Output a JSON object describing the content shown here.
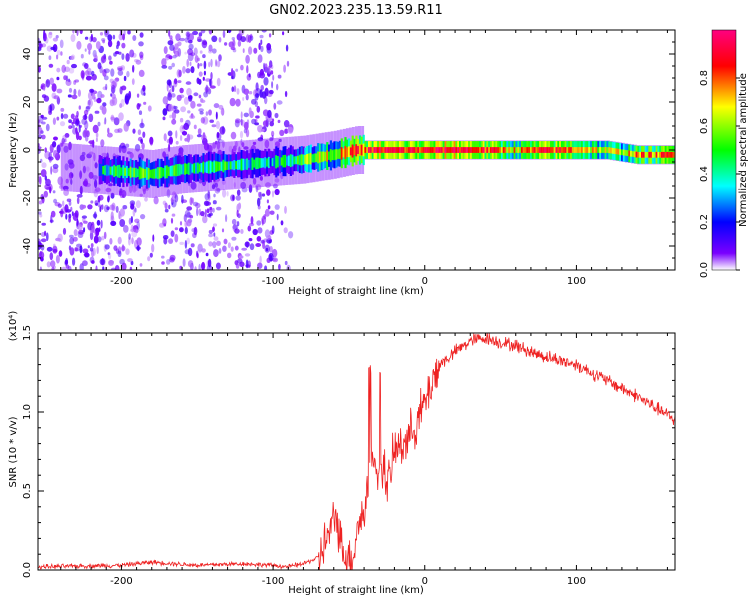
{
  "title": "GN02.2023.235.13.59.R11",
  "chart_data": [
    {
      "type": "heatmap",
      "xlabel": "Height of straight line (km)",
      "ylabel": "Frequency (Hz)",
      "xlim": [
        -255,
        165
      ],
      "ylim": [
        -50,
        50
      ],
      "x_ticks": [
        -200,
        -100,
        0,
        100
      ],
      "y_ticks": [
        -40,
        -20,
        0,
        20,
        40
      ],
      "x_tick_labels": [
        "-200",
        "-100",
        "0",
        "100"
      ],
      "y_tick_labels": [
        "-40",
        "-20",
        "0",
        "20",
        "40"
      ],
      "grid": false,
      "colorbar": {
        "label": "Normalized spectral amplitude",
        "range": [
          0,
          1
        ],
        "ticks": [
          0.0,
          0.2,
          0.4,
          0.6,
          0.8
        ],
        "tick_labels": [
          "0.0",
          "0.2",
          "0.4",
          "0.6",
          "0.8"
        ],
        "colormap": [
          "#ffffff",
          "#7a00ff",
          "#0000ff",
          "#00ffff",
          "#00ff00",
          "#ffff00",
          "#ff0000",
          "#ff0080"
        ]
      },
      "ridge": [
        {
          "x": -200,
          "y": -9,
          "a": 0.45
        },
        {
          "x": -180,
          "y": -10,
          "a": 0.55
        },
        {
          "x": -160,
          "y": -8,
          "a": 0.4
        },
        {
          "x": -140,
          "y": -7,
          "a": 0.45
        },
        {
          "x": -120,
          "y": -6,
          "a": 0.4
        },
        {
          "x": -100,
          "y": -5,
          "a": 0.35
        },
        {
          "x": -80,
          "y": -4,
          "a": 0.55
        },
        {
          "x": -60,
          "y": -2,
          "a": 0.65
        },
        {
          "x": -45,
          "y": 0,
          "a": 0.8
        },
        {
          "x": -30,
          "y": 0,
          "a": 0.9
        },
        {
          "x": 0,
          "y": 0,
          "a": 0.85
        },
        {
          "x": 20,
          "y": 0,
          "a": 0.95
        },
        {
          "x": 40,
          "y": 0,
          "a": 0.85
        },
        {
          "x": 60,
          "y": 0,
          "a": 0.7
        },
        {
          "x": 80,
          "y": 0,
          "a": 0.85
        },
        {
          "x": 100,
          "y": 0,
          "a": 0.8
        },
        {
          "x": 120,
          "y": 0,
          "a": 0.6
        },
        {
          "x": 140,
          "y": -2,
          "a": 0.75
        },
        {
          "x": 165,
          "y": -2,
          "a": 0.8
        }
      ]
    },
    {
      "type": "line",
      "xlabel": "Height of straight line (km)",
      "ylabel": "SNR (10 * v/v)",
      "y_multiplier": "(x10⁴)",
      "xlim": [
        -255,
        165
      ],
      "ylim": [
        0,
        1.5
      ],
      "x_ticks": [
        -200,
        -100,
        0,
        100
      ],
      "y_ticks": [
        0.0,
        0.5,
        1.0,
        1.5
      ],
      "x_tick_labels": [
        "-200",
        "-100",
        "0",
        "100"
      ],
      "y_tick_labels": [
        "0.0",
        "0.5",
        "1.0",
        "1.5"
      ],
      "grid": false,
      "color": "#ee2222",
      "series": [
        {
          "x": [
            -255,
            -200,
            -180,
            -150,
            -120,
            -100,
            -90,
            -80,
            -70,
            -62,
            -58,
            -55,
            -52,
            -48,
            -44,
            -40,
            -37,
            -35,
            -33,
            -30,
            -27,
            -25,
            -20,
            -15,
            -10,
            -5,
            0,
            5,
            10,
            20,
            30,
            40,
            50,
            60,
            70,
            80,
            100,
            120,
            140,
            165
          ],
          "y": [
            0.02,
            0.03,
            0.05,
            0.03,
            0.04,
            0.03,
            0.02,
            0.04,
            0.08,
            0.25,
            0.35,
            0.15,
            0.1,
            0.05,
            0.3,
            0.35,
            0.55,
            0.75,
            0.6,
            0.55,
            0.7,
            0.5,
            0.75,
            0.8,
            0.85,
            0.95,
            1.05,
            1.2,
            1.3,
            1.38,
            1.45,
            1.47,
            1.44,
            1.42,
            1.38,
            1.35,
            1.3,
            1.2,
            1.1,
            0.95
          ]
        }
      ]
    }
  ]
}
